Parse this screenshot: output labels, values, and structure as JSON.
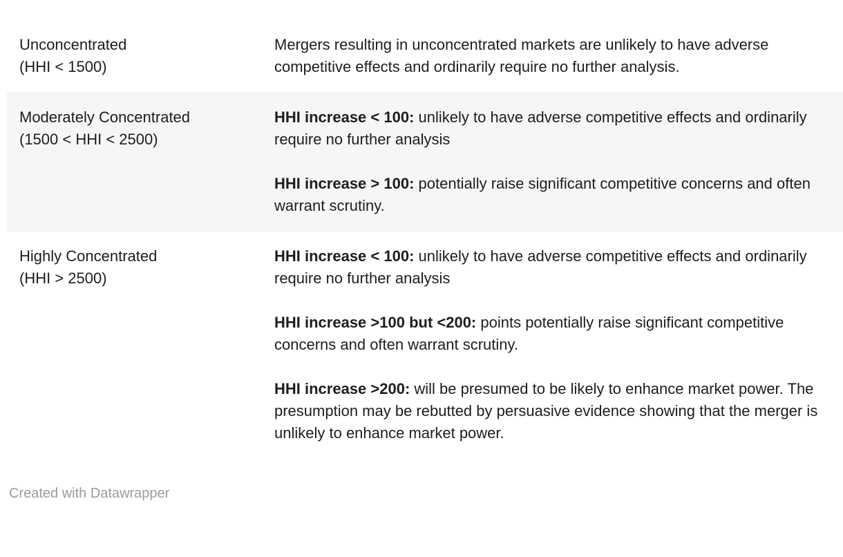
{
  "colors": {
    "text": "#1d1d1d",
    "stripe_bg": "#f5f6f6",
    "stripe_border": "#ececec",
    "credit": "#9b9b9b",
    "page_bg": "#ffffff"
  },
  "table": {
    "rows": [
      {
        "term": "Unconcentrated",
        "range": "(HHI < 1500)",
        "paragraphs": [
          {
            "bold": "",
            "text": "Mergers resulting in unconcentrated markets are unlikely to have adverse competitive effects and ordinarily require no further analysis."
          }
        ]
      },
      {
        "term": "Moderately Concentrated",
        "range": "(1500 < HHI < 2500)",
        "paragraphs": [
          {
            "bold": "HHI increase < 100:",
            "text": " unlikely to have adverse competitive effects and ordinarily require no further analysis"
          },
          {
            "bold": "HHI increase > 100:",
            "text": " potentially raise significant competitive concerns and often warrant scrutiny."
          }
        ]
      },
      {
        "term": "Highly Concentrated",
        "range": "(HHI > 2500)",
        "paragraphs": [
          {
            "bold": "HHI increase < 100:",
            "text": " unlikely to have adverse competitive effects and ordinarily require no further analysis"
          },
          {
            "bold": "HHI increase >100 but <200:",
            "text": " points potentially raise significant competitive concerns and often warrant scrutiny."
          },
          {
            "bold": "HHI increase >200:",
            "text": " will be presumed to be likely to enhance market power. The presumption may be rebutted by persuasive evidence showing that the merger is unlikely to enhance market power."
          }
        ]
      }
    ]
  },
  "footer": {
    "credit": "Created with Datawrapper"
  },
  "chart_data": {
    "type": "table",
    "columns": [],
    "rows": [
      {
        "concentration_level": "Unconcentrated (HHI < 1500)",
        "guidance": "Mergers resulting in unconcentrated markets are unlikely to have adverse competitive effects and ordinarily require no further analysis."
      },
      {
        "concentration_level": "Moderately Concentrated (1500 < HHI < 2500)",
        "guidance": "HHI increase < 100: unlikely to have adverse competitive effects and ordinarily require no further analysis\n\nHHI increase > 100: potentially raise significant competitive concerns and often warrant scrutiny."
      },
      {
        "concentration_level": "Highly Concentrated (HHI > 2500)",
        "guidance": "HHI increase < 100: unlikely to have adverse competitive effects and ordinarily require no further analysis\n\nHHI increase >100 but <200: points potentially raise significant competitive concerns and often warrant scrutiny.\n\nHHI increase >200: will be presumed to be likely to enhance market power. The presumption may be rebutted by persuasive evidence showing that the merger is unlikely to enhance market power."
      }
    ]
  }
}
